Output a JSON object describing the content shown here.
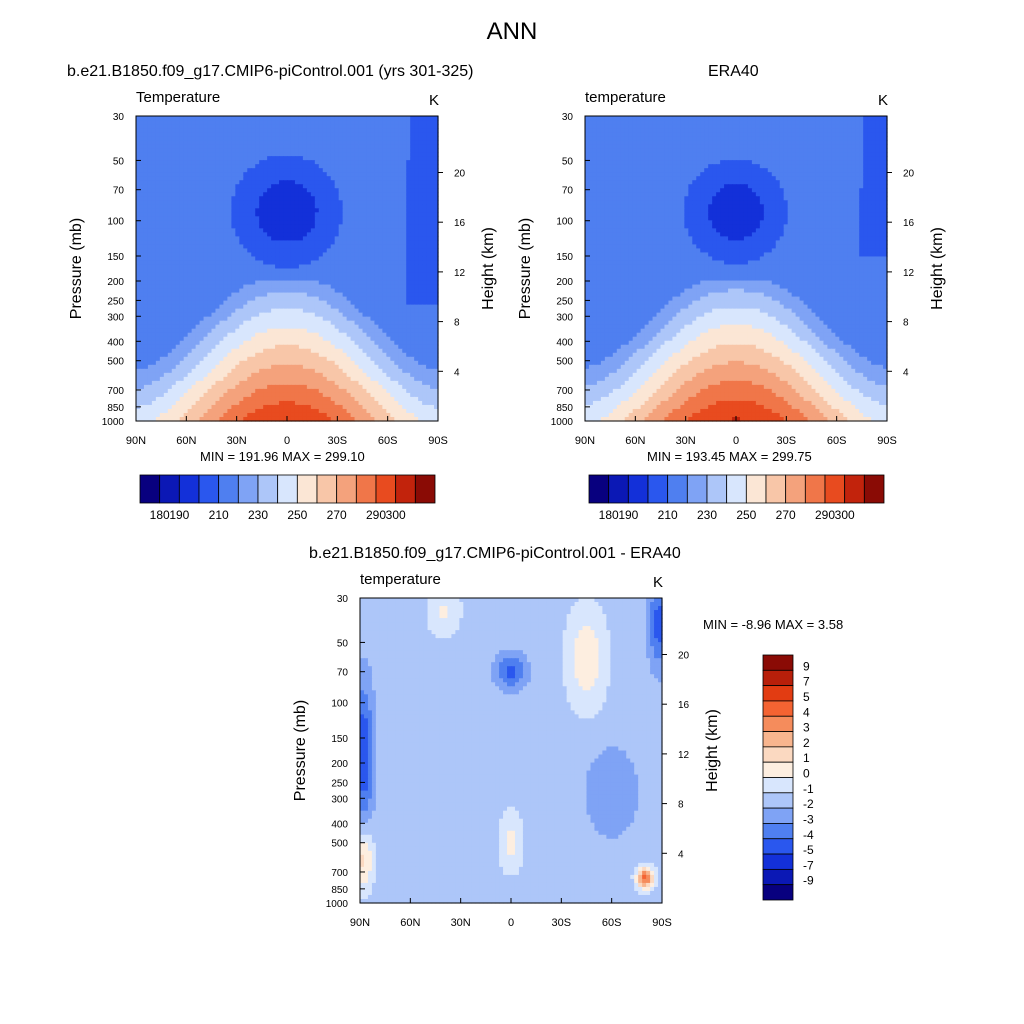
{
  "suptitle": "ANN",
  "panels": [
    {
      "title": "b.e21.B1850.f09_g17.CMIP6-piControl.001 (yrs 301-325)",
      "subtitle": "Temperature",
      "unit": "K",
      "minmax": "MIN = 191.96  MAX = 299.10",
      "ylabel": "Pressure (mb)",
      "ylabel_right": "Height (km)"
    },
    {
      "title": "ERA40",
      "subtitle": "temperature",
      "unit": "K",
      "minmax": "MIN = 193.45  MAX = 299.75",
      "ylabel": "Pressure (mb)",
      "ylabel_right": "Height (km)"
    },
    {
      "title": "b.e21.B1850.f09_g17.CMIP6-piControl.001 - ERA40",
      "subtitle": "temperature",
      "unit": "K",
      "minmax": "MIN =  -8.96  MAX =   3.58",
      "ylabel": "Pressure (mb)",
      "ylabel_right": "Height (km)"
    }
  ],
  "chart_data": [
    {
      "type": "heatmap",
      "title": "b.e21.B1850.f09_g17.CMIP6-piControl.001 (yrs 301-325)",
      "subtitle": "Temperature",
      "units": "K",
      "x_ticks": [
        "90N",
        "60N",
        "30N",
        "0",
        "30S",
        "60S",
        "90S"
      ],
      "y_ticks": [
        30,
        50,
        70,
        100,
        150,
        200,
        250,
        300,
        400,
        500,
        700,
        850,
        1000
      ],
      "y_scale": "log",
      "y_right_ticks": [
        20,
        16,
        12,
        8,
        4
      ],
      "min": 191.96,
      "max": 299.1,
      "levels": [
        180,
        190,
        200,
        210,
        220,
        230,
        240,
        250,
        260,
        270,
        280,
        290,
        300
      ],
      "colorbar_labels": [
        "180",
        "190",
        "210",
        "230",
        "250",
        "270",
        "290",
        "300"
      ]
    },
    {
      "type": "heatmap",
      "title": "ERA40",
      "subtitle": "temperature",
      "units": "K",
      "x_ticks": [
        "90N",
        "60N",
        "30N",
        "0",
        "30S",
        "60S",
        "90S"
      ],
      "y_ticks": [
        30,
        50,
        70,
        100,
        150,
        200,
        250,
        300,
        400,
        500,
        700,
        850,
        1000
      ],
      "y_scale": "log",
      "y_right_ticks": [
        20,
        16,
        12,
        8,
        4
      ],
      "min": 193.45,
      "max": 299.75,
      "levels": [
        180,
        190,
        200,
        210,
        220,
        230,
        240,
        250,
        260,
        270,
        280,
        290,
        300
      ],
      "colorbar_labels": [
        "180",
        "190",
        "210",
        "230",
        "250",
        "270",
        "290",
        "300"
      ]
    },
    {
      "type": "heatmap",
      "title": "b.e21.B1850.f09_g17.CMIP6-piControl.001 - ERA40",
      "subtitle": "temperature",
      "units": "K",
      "x_ticks": [
        "90N",
        "60N",
        "30N",
        "0",
        "30S",
        "60S",
        "90S"
      ],
      "y_ticks": [
        30,
        50,
        70,
        100,
        150,
        200,
        250,
        300,
        400,
        500,
        700,
        850,
        1000
      ],
      "y_scale": "log",
      "y_right_ticks": [
        20,
        16,
        12,
        8,
        4
      ],
      "min": -8.96,
      "max": 3.58,
      "levels": [
        -9,
        -7,
        -5,
        -4,
        -3,
        -2,
        -1,
        0,
        1,
        2,
        3,
        4,
        5,
        7,
        9
      ],
      "colorbar_labels": [
        "9",
        "7",
        "5",
        "4",
        "3",
        "2",
        "1",
        "0",
        "-1",
        "-2",
        "-3",
        "-4",
        "-5",
        "-7",
        "-9"
      ]
    }
  ],
  "palette_abs": [
    "#08007f",
    "#0b18b5",
    "#1330d9",
    "#2a57ee",
    "#4f7ff0",
    "#7fa3f5",
    "#adc6f9",
    "#d8e6fd",
    "#fbe6d5",
    "#f8c6a8",
    "#f4a27c",
    "#f07649",
    "#e84b1f",
    "#c2230c",
    "#8a0b05"
  ],
  "palette_diff": [
    "#8a0b05",
    "#b81f0a",
    "#e23c12",
    "#f46332",
    "#f58c5c",
    "#f8b58e",
    "#fbd9c1",
    "#fdeee0",
    "#d8e6fd",
    "#adc6f9",
    "#7fa3f5",
    "#4f7ff0",
    "#2a57ee",
    "#1330d9",
    "#0b18b5",
    "#08007f"
  ]
}
